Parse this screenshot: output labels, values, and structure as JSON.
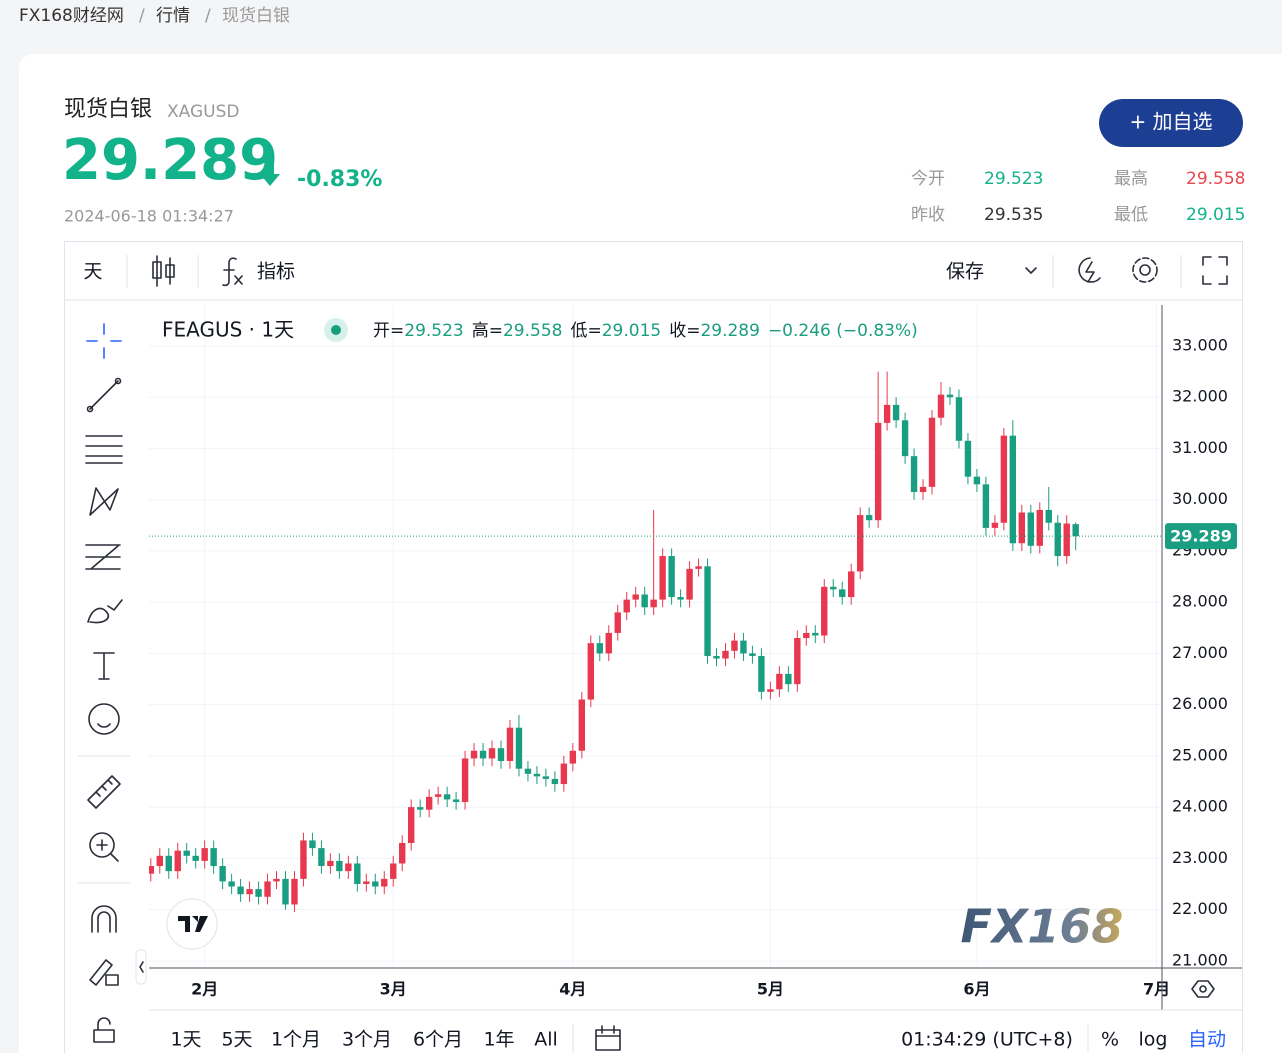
{
  "breadcrumb": [
    "FX168财经网",
    "行情",
    "现货白银"
  ],
  "header": {
    "name": "现货白银",
    "symbol": "XAGUSD",
    "price": "29.289",
    "change": "-0.83%",
    "time": "2024-06-18 01:34:27",
    "button": "+ 加自选",
    "stats": [
      {
        "label": "今开",
        "value": "29.523"
      },
      {
        "label": "最高",
        "value": "29.558"
      },
      {
        "label": "昨收",
        "value": "29.535"
      },
      {
        "label": "最低",
        "value": "29.015"
      }
    ]
  },
  "toolbar": {
    "interval": "天",
    "indicators": "指标",
    "save": "保存"
  },
  "chart_data": {
    "type": "candlestick",
    "title": "FEAGUS · 1天",
    "legend": [
      {
        "label": "开=",
        "value": "29.523"
      },
      {
        "label": "高=",
        "value": "29.558"
      },
      {
        "label": "低=",
        "value": "29.015"
      },
      {
        "label": "收=",
        "value": "29.289"
      }
    ],
    "change": "−0.246 (−0.83%)",
    "up_color": "#e8384f",
    "down_color": "#1a9e81",
    "open": [
      22.7,
      22.85,
      23.05,
      22.75,
      23.15,
      23.05,
      22.95,
      23.2,
      22.85,
      22.55,
      22.45,
      22.3,
      22.4,
      22.25,
      22.55,
      22.6,
      22.1,
      22.6,
      23.35,
      23.2,
      22.85,
      22.95,
      22.75,
      22.9,
      22.5,
      22.55,
      22.45,
      22.6,
      22.9,
      23.3,
      24.0,
      23.95,
      24.2,
      24.25,
      24.15,
      24.1,
      24.95,
      25.1,
      24.95,
      25.15,
      24.9,
      25.55,
      24.75,
      24.65,
      24.6,
      24.55,
      24.45,
      24.85,
      25.1,
      26.1,
      27.2,
      27.0,
      27.4,
      27.8,
      28.05,
      28.15,
      27.9,
      28.05,
      28.9,
      28.1,
      28.05,
      28.65,
      28.7,
      26.95,
      26.9,
      27.05,
      27.25,
      27.0,
      26.95,
      26.25,
      26.3,
      26.6,
      26.4,
      27.3,
      27.4,
      27.35,
      28.3,
      28.25,
      28.1,
      28.6,
      29.7,
      29.6,
      31.5,
      31.85,
      31.55,
      30.85,
      30.15,
      30.25,
      31.6,
      32.05,
      32.0,
      31.15,
      30.45,
      30.3,
      29.45,
      29.55,
      31.25,
      29.15,
      29.75,
      29.1,
      29.8,
      29.55,
      28.9,
      29.523
    ],
    "high": [
      23.0,
      23.2,
      23.2,
      23.3,
      23.3,
      23.2,
      23.35,
      23.35,
      23.0,
      22.7,
      22.6,
      22.55,
      22.55,
      22.7,
      22.75,
      22.75,
      22.75,
      23.5,
      23.5,
      23.35,
      23.1,
      23.1,
      23.05,
      23.05,
      22.7,
      22.7,
      22.75,
      23.05,
      23.45,
      24.15,
      24.15,
      24.35,
      24.4,
      24.4,
      24.3,
      25.1,
      25.25,
      25.25,
      25.3,
      25.3,
      25.7,
      25.8,
      24.9,
      24.8,
      24.75,
      24.7,
      25.0,
      25.25,
      26.25,
      27.35,
      27.35,
      27.55,
      27.95,
      28.2,
      28.3,
      28.3,
      29.8,
      29.05,
      29.05,
      28.25,
      28.8,
      28.85,
      28.85,
      27.1,
      27.2,
      27.4,
      27.4,
      27.15,
      27.1,
      26.45,
      26.75,
      26.75,
      27.45,
      27.55,
      27.55,
      28.45,
      28.45,
      28.4,
      28.75,
      29.85,
      29.85,
      32.5,
      32.5,
      32.0,
      31.7,
      31.0,
      30.4,
      31.75,
      32.3,
      32.2,
      32.15,
      31.3,
      30.6,
      30.45,
      29.7,
      31.4,
      31.55,
      29.9,
      29.9,
      29.95,
      30.25,
      29.7,
      29.7,
      29.558
    ],
    "low": [
      22.55,
      22.7,
      22.6,
      22.6,
      22.9,
      22.8,
      22.8,
      22.7,
      22.4,
      22.3,
      22.15,
      22.15,
      22.1,
      22.1,
      22.4,
      22.0,
      21.95,
      22.45,
      23.05,
      22.7,
      22.7,
      22.6,
      22.6,
      22.35,
      22.35,
      22.3,
      22.3,
      22.45,
      22.75,
      23.15,
      23.8,
      23.8,
      24.05,
      24.0,
      23.95,
      23.95,
      24.8,
      24.8,
      24.8,
      24.75,
      24.75,
      24.6,
      24.5,
      24.45,
      24.4,
      24.3,
      24.3,
      24.7,
      24.95,
      25.95,
      26.85,
      26.85,
      27.25,
      27.65,
      27.9,
      27.75,
      27.75,
      27.9,
      27.95,
      27.9,
      27.9,
      28.5,
      26.8,
      26.75,
      26.75,
      26.9,
      26.85,
      26.8,
      26.1,
      26.1,
      26.15,
      26.25,
      26.25,
      27.15,
      27.2,
      27.2,
      28.1,
      27.95,
      27.95,
      28.45,
      29.45,
      29.45,
      31.35,
      31.4,
      30.7,
      30.0,
      30.0,
      30.1,
      31.45,
      31.85,
      31.0,
      30.3,
      30.15,
      29.3,
      29.3,
      29.4,
      29.0,
      29.0,
      28.95,
      28.95,
      29.4,
      28.7,
      28.75,
      29.015
    ],
    "close": [
      22.85,
      23.05,
      22.75,
      23.15,
      23.05,
      22.95,
      23.2,
      22.85,
      22.55,
      22.45,
      22.3,
      22.4,
      22.25,
      22.55,
      22.6,
      22.1,
      22.6,
      23.35,
      23.2,
      22.85,
      22.95,
      22.75,
      22.9,
      22.5,
      22.55,
      22.45,
      22.6,
      22.9,
      23.3,
      24.0,
      23.95,
      24.2,
      24.25,
      24.15,
      24.1,
      24.95,
      25.1,
      24.95,
      25.15,
      24.9,
      25.55,
      24.75,
      24.65,
      24.6,
      24.55,
      24.45,
      24.85,
      25.1,
      26.1,
      27.2,
      27.0,
      27.4,
      27.8,
      28.05,
      28.15,
      27.9,
      28.05,
      28.9,
      28.1,
      28.05,
      28.65,
      28.7,
      26.95,
      26.9,
      27.05,
      27.25,
      27.0,
      26.95,
      26.25,
      26.3,
      26.6,
      26.4,
      27.3,
      27.4,
      27.35,
      28.3,
      28.25,
      28.1,
      28.6,
      29.7,
      29.6,
      31.5,
      31.85,
      31.55,
      30.85,
      30.15,
      30.25,
      31.6,
      32.05,
      32.0,
      31.15,
      30.45,
      30.3,
      29.45,
      29.55,
      31.25,
      29.15,
      29.75,
      29.1,
      29.8,
      29.55,
      28.9,
      29.535,
      29.289
    ],
    "last_label": "29.289",
    "xlim": [
      -0.2,
      112.5
    ],
    "xticks": [
      {
        "value": 6,
        "label": "2月"
      },
      {
        "value": 27,
        "label": "3月"
      },
      {
        "value": 47,
        "label": "4月"
      },
      {
        "value": 69,
        "label": "5月"
      },
      {
        "value": 92,
        "label": "6月"
      },
      {
        "value": 112,
        "label": "7月"
      }
    ],
    "ylim": [
      20.86,
      33.8
    ],
    "yticks": [
      {
        "value": 21,
        "label": "21.000"
      },
      {
        "value": 22,
        "label": "22.000"
      },
      {
        "value": 23,
        "label": "23.000"
      },
      {
        "value": 24,
        "label": "24.000"
      },
      {
        "value": 25,
        "label": "25.000"
      },
      {
        "value": 26,
        "label": "26.000"
      },
      {
        "value": 27,
        "label": "27.000"
      },
      {
        "value": 28,
        "label": "28.000"
      },
      {
        "value": 29,
        "label": "29.000"
      },
      {
        "value": 30,
        "label": "30.000"
      },
      {
        "value": 31,
        "label": "31.000"
      },
      {
        "value": 32,
        "label": "32.000"
      },
      {
        "value": 33,
        "label": "33.000"
      }
    ],
    "grid": true,
    "watermark": "FX168"
  },
  "range_buttons": [
    "1天",
    "5天",
    "1个月",
    "3个月",
    "6个月",
    "1年",
    "All"
  ],
  "footer": {
    "clock": "01:34:29 (UTC+8)",
    "percent": "%",
    "log": "log",
    "auto": "自动"
  }
}
